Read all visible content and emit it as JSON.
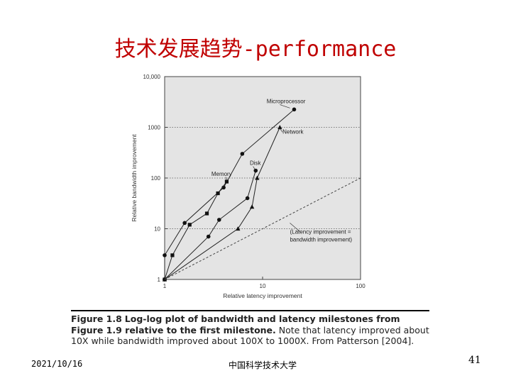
{
  "slide": {
    "title": "技术发展趋势-performance",
    "footer_date": "2021/10/16",
    "footer_org": "中国科学技术大学",
    "page_number": "41"
  },
  "caption": {
    "label": "Figure 1.8",
    "bold_text": "Log-log plot of bandwidth and latency milestones from Figure 1.9 relative to the first milestone.",
    "text": "Note that latency improved about 10X while bandwidth improved about 100X to 1000X. From Patterson [2004]."
  },
  "chart_data": {
    "type": "line",
    "xlabel": "Relative latency improvement",
    "ylabel": "Relative bandwidth improvement",
    "xscale": "log",
    "yscale": "log",
    "xlim": [
      1,
      100
    ],
    "ylim": [
      1,
      10000
    ],
    "xticks": [
      "1",
      "10",
      "100"
    ],
    "yticks": [
      "1",
      "10",
      "100",
      "1000",
      "10,000"
    ],
    "grid": "dotted horizontal at 10, 100, 1000",
    "series": [
      {
        "name": "Microprocessor",
        "marker": "circle",
        "points": [
          [
            1,
            1
          ],
          [
            1,
            3
          ],
          [
            1.6,
            13
          ],
          [
            4,
            65
          ],
          [
            6.2,
            300
          ],
          [
            21,
            2250
          ]
        ]
      },
      {
        "name": "Memory",
        "marker": "square",
        "points": [
          [
            1,
            1
          ],
          [
            1.2,
            3
          ],
          [
            1.8,
            12
          ],
          [
            2.7,
            20
          ],
          [
            3.5,
            50
          ],
          [
            4.3,
            85
          ]
        ]
      },
      {
        "name": "Disk",
        "marker": "circle",
        "points": [
          [
            1,
            1
          ],
          [
            2.8,
            7
          ],
          [
            3.6,
            15
          ],
          [
            7,
            40
          ],
          [
            8.5,
            140
          ]
        ]
      },
      {
        "name": "Network",
        "marker": "triangle",
        "points": [
          [
            1,
            1
          ],
          [
            5.6,
            10
          ],
          [
            7.8,
            27
          ],
          [
            8.8,
            100
          ],
          [
            15,
            1000
          ]
        ]
      },
      {
        "name": "(Latency improvement = bandwidth improvement)",
        "style": "dashed",
        "points": [
          [
            1,
            1
          ],
          [
            100,
            100
          ]
        ]
      }
    ],
    "series_labels": [
      {
        "text": "Microprocessor",
        "at": [
          11,
          3000
        ]
      },
      {
        "text": "Network",
        "at": [
          16,
          750
        ]
      },
      {
        "text": "Disk",
        "at": [
          7.4,
          180
        ]
      },
      {
        "text": "Memory",
        "at": [
          3.0,
          110
        ]
      },
      {
        "text": "(Latency improvement =",
        "at": [
          19,
          8
        ]
      },
      {
        "text": "bandwidth improvement)",
        "at": [
          19,
          5.6
        ]
      }
    ]
  }
}
